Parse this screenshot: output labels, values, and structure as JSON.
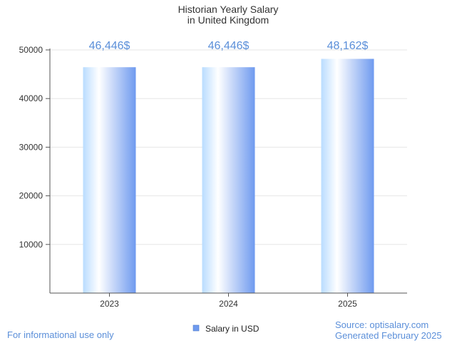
{
  "chart_data": {
    "type": "bar",
    "title": "Historian Yearly Salary",
    "subtitle": "in United Kingdom",
    "categories": [
      "2023",
      "2024",
      "2025"
    ],
    "series": [
      {
        "name": "Salary in USD",
        "values": [
          46446,
          46446,
          48162
        ]
      }
    ],
    "data_labels": [
      "46,446$",
      "46,446$",
      "48,162$"
    ],
    "ylim": [
      0,
      50000
    ],
    "y_ticks": [
      10000,
      20000,
      30000,
      40000,
      50000
    ],
    "y_tick_labels": [
      "10000",
      "20000",
      "30000",
      "40000",
      "50000"
    ],
    "xlabel": "",
    "ylabel": "",
    "grid": true,
    "legend_position": "bottom-center"
  },
  "colors": {
    "bar_light": "#ffffff",
    "bar_mid": "#b9dcff",
    "bar_dark": "#6f9aef",
    "data_label": "#5b8fd9",
    "axis": "#555555",
    "grid": "#e6e6e6",
    "text": "#333333",
    "footer": "#5b8fd9",
    "legend_swatch": "#6f9aef"
  },
  "footer": {
    "disclaimer": "For informational use only",
    "source": "Source: optisalary.com",
    "generated": "Generated February 2025"
  }
}
